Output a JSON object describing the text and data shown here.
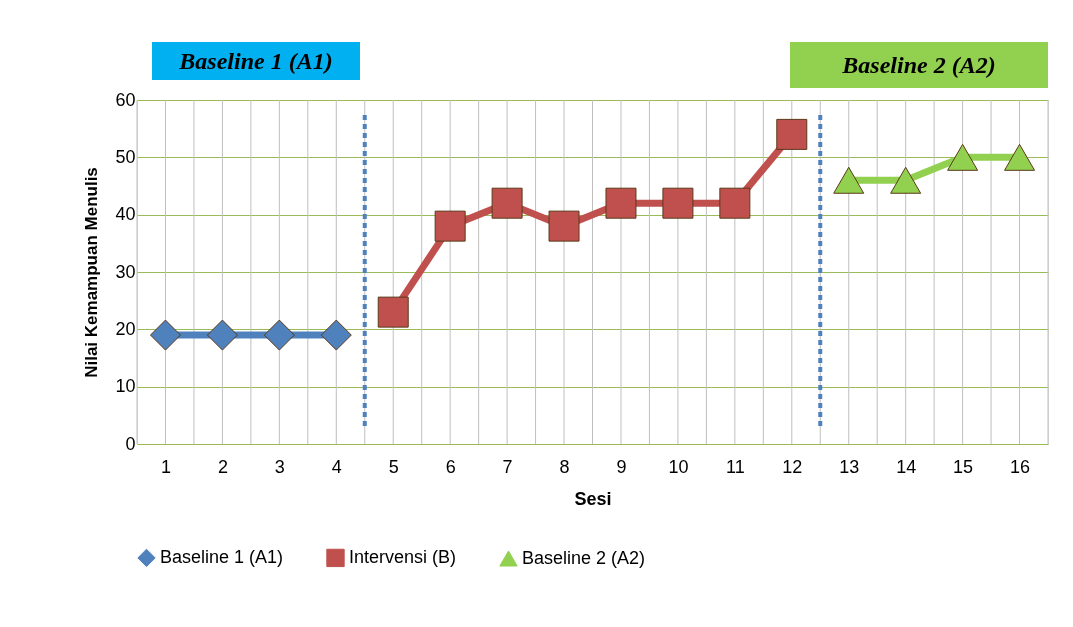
{
  "chart_data": {
    "type": "line",
    "xlabel": "Sesi",
    "ylabel": "Nilai Kemampuan Menulis",
    "xlim": [
      0.5,
      16.5
    ],
    "xticks": [
      {
        "value": 0.5,
        "label": null
      },
      1,
      {
        "value": 1.5,
        "label": null
      },
      2,
      {
        "value": 2.5,
        "label": null
      },
      3,
      {
        "value": 3.5,
        "label": null
      },
      4,
      {
        "value": 4.5,
        "label": null
      },
      5,
      {
        "value": 5.5,
        "label": null
      },
      6,
      {
        "value": 6.5,
        "label": null
      },
      7,
      {
        "value": 7.5,
        "label": null
      },
      8,
      {
        "value": 8.5,
        "label": null
      },
      9,
      {
        "value": 9.5,
        "label": null
      },
      10,
      {
        "value": 10.5,
        "label": null
      },
      11,
      {
        "value": 11.5,
        "label": null
      },
      12,
      {
        "value": 12.5,
        "label": null
      },
      13,
      {
        "value": 13.5,
        "label": null
      },
      14,
      {
        "value": 14.5,
        "label": null
      },
      15,
      {
        "value": 15.5,
        "label": null
      },
      16,
      {
        "value": 16.5,
        "label": null
      }
    ],
    "ylim": [
      0,
      60
    ],
    "yticks": [
      0,
      10,
      20,
      30,
      40,
      50,
      60
    ],
    "grid": true,
    "legend": "bottom",
    "series": [
      {
        "name": "Baseline 1 (A1)",
        "color": "#4f81bd",
        "marker": "diamond",
        "x": [
          1,
          2,
          3,
          4
        ],
        "values": [
          19,
          19,
          19,
          19
        ]
      },
      {
        "name": "Intervensi (B)",
        "color": "#c0504d",
        "marker": "square",
        "x": [
          5,
          6,
          7,
          8,
          9,
          10,
          11,
          12
        ],
        "values": [
          23,
          38,
          42,
          38,
          42,
          42,
          42,
          54
        ]
      },
      {
        "name": "Baseline 2 (A2)",
        "color": "#92d050",
        "marker": "triangle",
        "x": [
          13,
          14,
          15,
          16
        ],
        "values": [
          46,
          46,
          50,
          50
        ]
      }
    ],
    "ref_lines": [
      {
        "axis": "x",
        "value": 4.5,
        "color": "#4f81bd",
        "line_style": "dashed"
      },
      {
        "axis": "x",
        "value": 12.5,
        "color": "#4f81bd",
        "line_style": "dashed"
      }
    ],
    "annotations": [
      "Baseline 1 (A1)",
      "Baseline 2 (A2)"
    ]
  }
}
